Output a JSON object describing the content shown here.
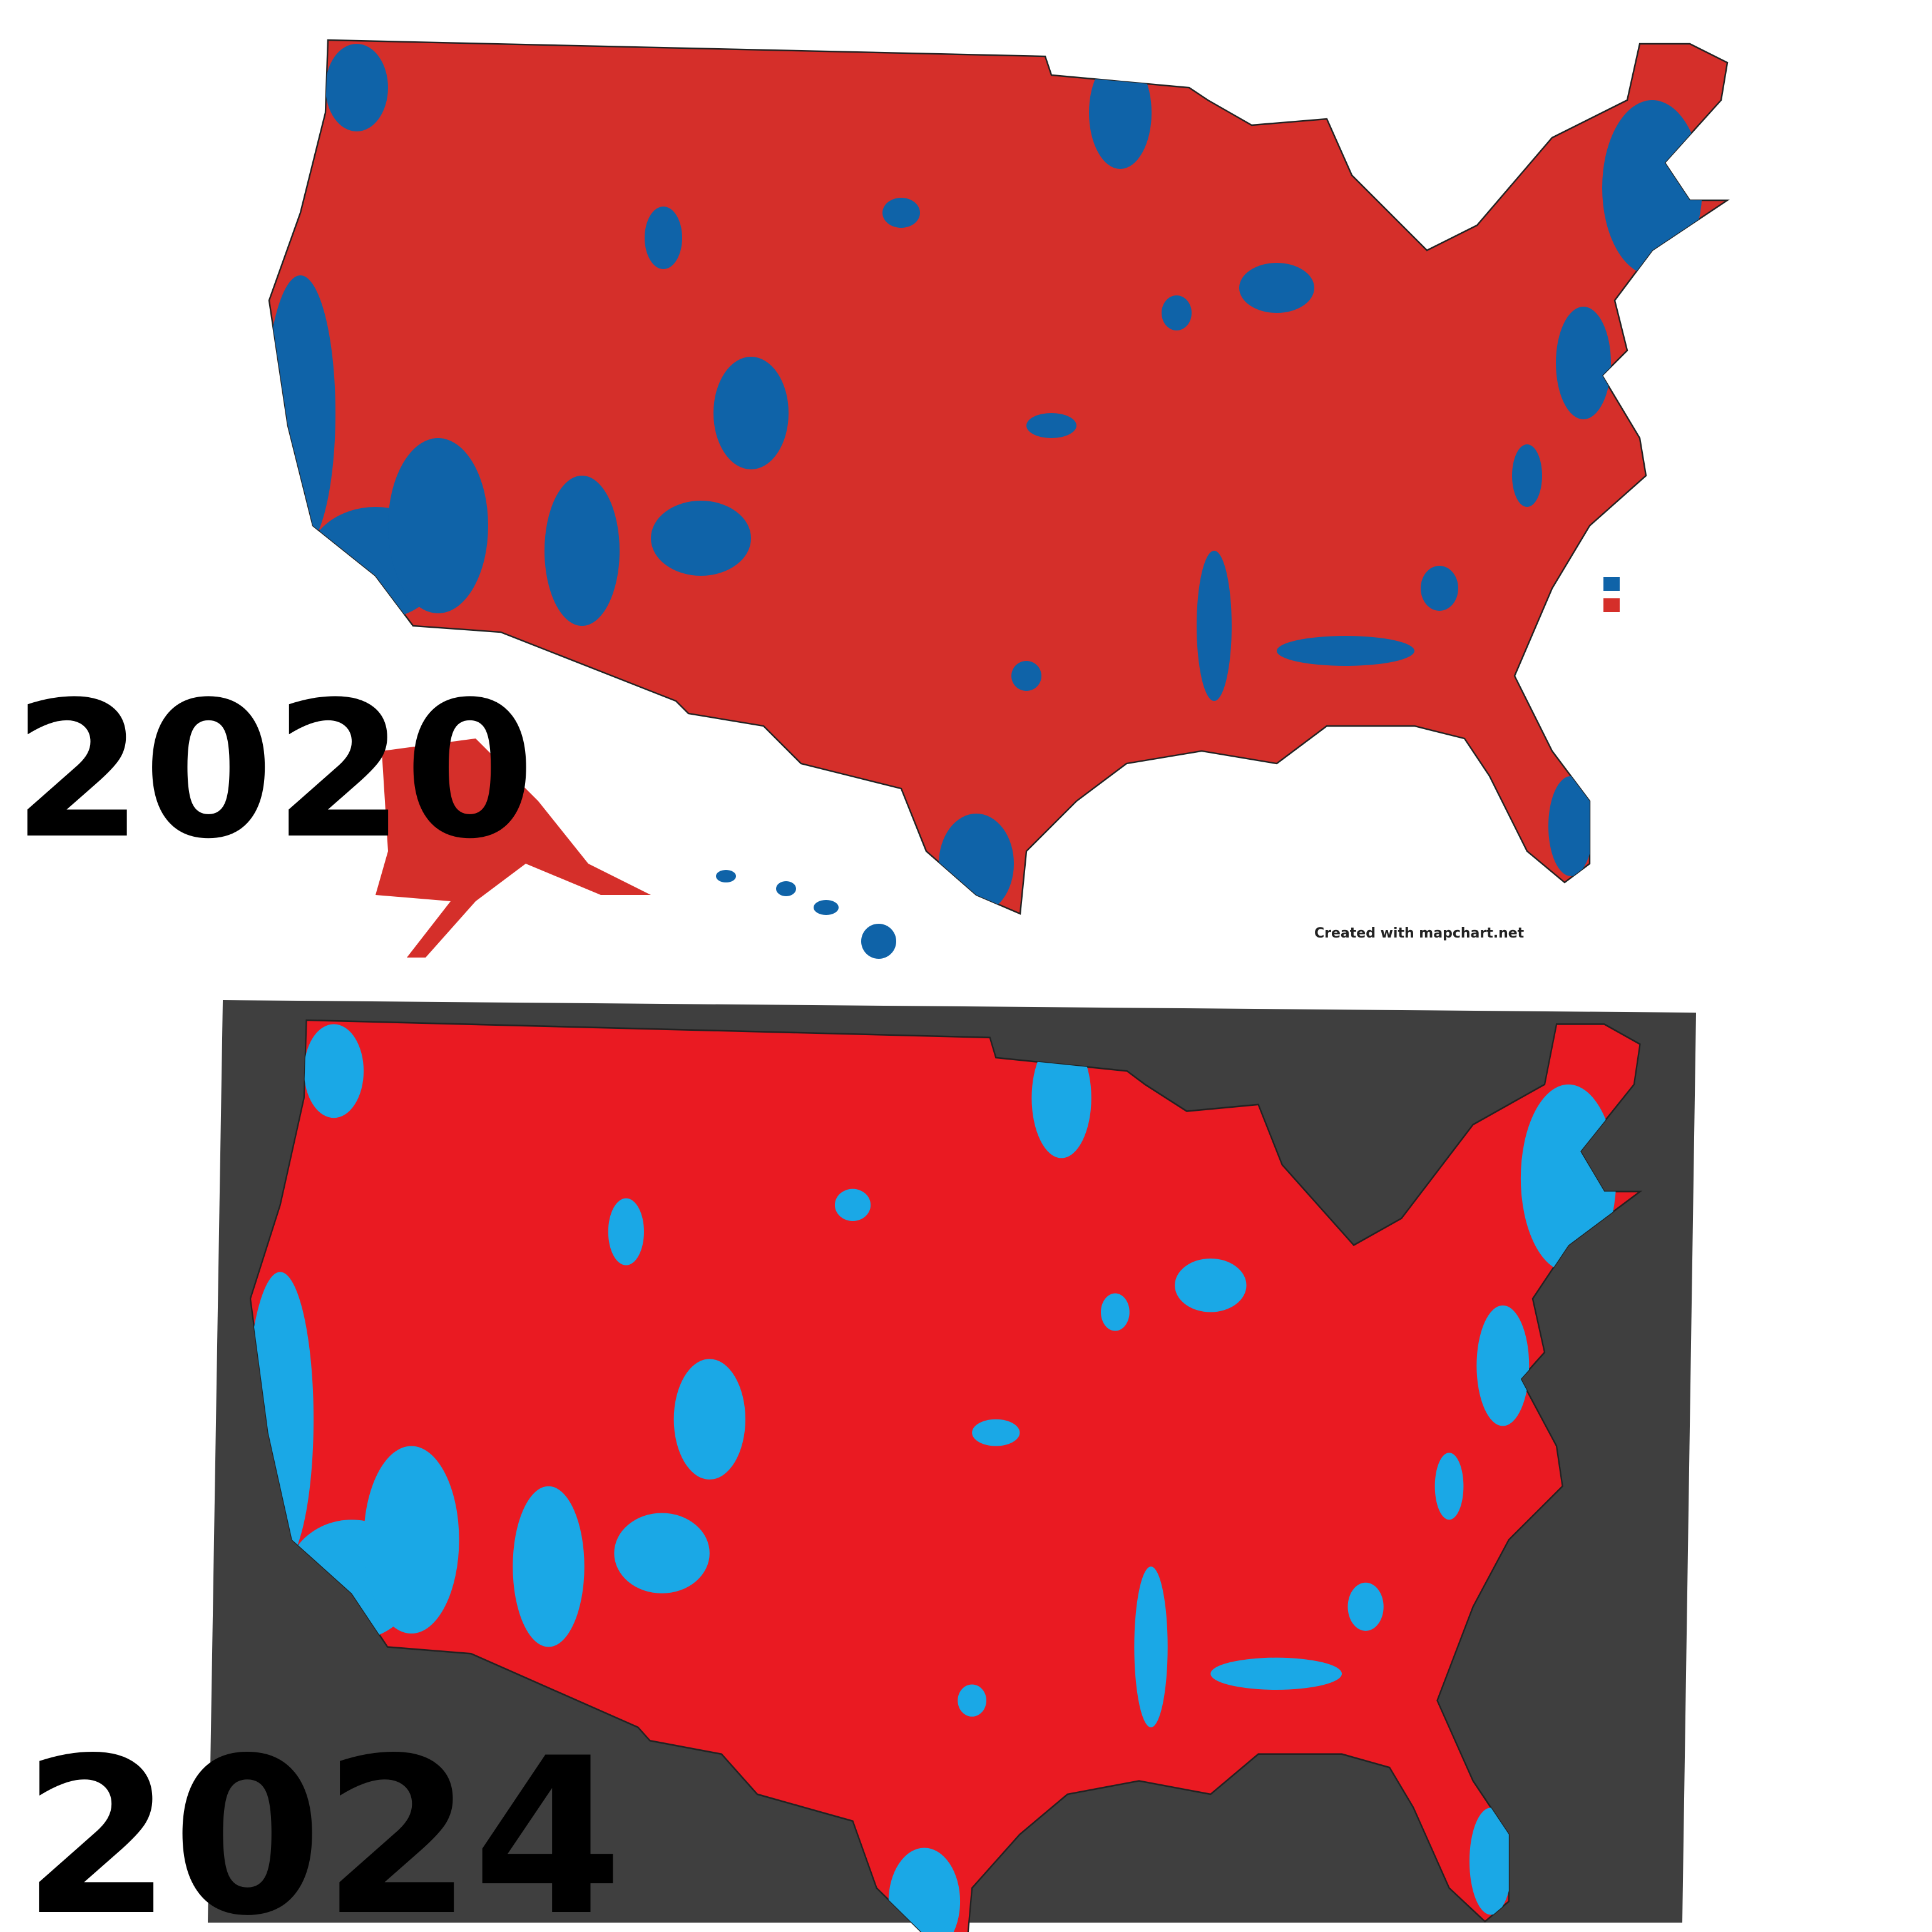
{
  "panels": [
    {
      "year_label": "2020",
      "credit": "Created with mapchart.net"
    },
    {
      "year_label": "2024"
    }
  ]
}
